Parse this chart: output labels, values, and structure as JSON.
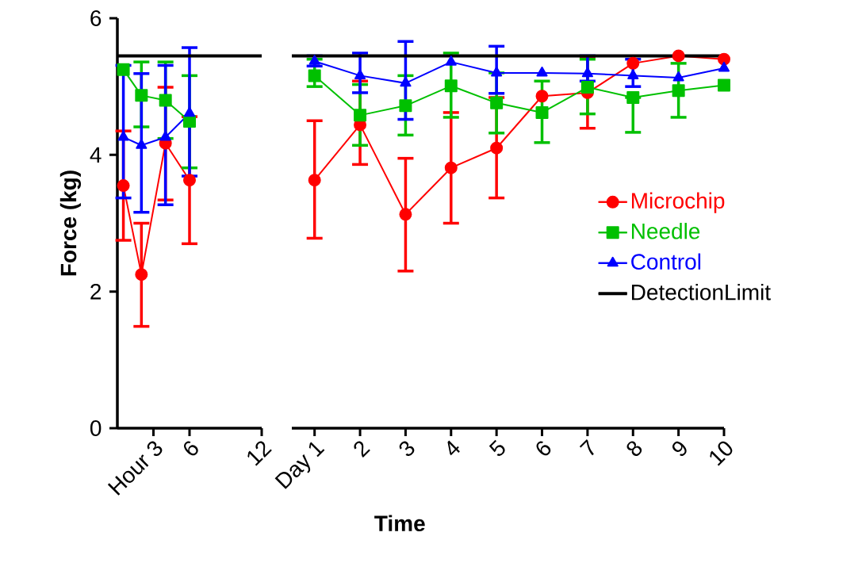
{
  "chart_data": [
    {
      "type": "line",
      "ylabel": "Force (kg)",
      "x": [
        0.5,
        2,
        4,
        6
      ],
      "xlim": [
        0,
        12
      ],
      "ylim": [
        0,
        6
      ],
      "yticks": [
        0,
        2,
        4,
        6
      ],
      "xticks": [
        {
          "value": 3,
          "label": "Hour 3"
        },
        6,
        12
      ],
      "tick_labels": "xy",
      "legend": false,
      "series": [
        {
          "color": "#ff0000",
          "marker": "circle",
          "values": [
            3.55,
            2.25,
            4.17,
            3.63
          ],
          "errors": [
            [
              2.75,
              4.35
            ],
            [
              1.49,
              3.0
            ],
            [
              3.34,
              4.99
            ],
            [
              2.7,
              4.56
            ]
          ]
        },
        {
          "color": "#00c000",
          "marker": "square",
          "values": [
            5.25,
            4.87,
            4.8,
            4.49
          ],
          "errors": [
            null,
            [
              4.41,
              5.36
            ],
            [
              4.24,
              5.36
            ],
            [
              3.81,
              5.16
            ]
          ]
        },
        {
          "color": "#0000ff",
          "marker": "triangle",
          "values": [
            4.26,
            4.14,
            4.26,
            4.61
          ],
          "errors": [
            [
              3.37,
              5.31
            ],
            [
              3.16,
              5.19
            ],
            [
              3.27,
              5.31
            ],
            [
              3.69,
              5.57
            ]
          ]
        }
      ],
      "ref_lines": [
        {
          "axis": "y",
          "value": 5.45,
          "color": "#000000"
        }
      ]
    },
    {
      "type": "line",
      "xlabel": "Time",
      "x": [
        1,
        2,
        3,
        4,
        5,
        6,
        7,
        8,
        9,
        10
      ],
      "xlim": [
        0.5,
        10
      ],
      "ylim": [
        0,
        6
      ],
      "xticks": [
        {
          "value": 1,
          "label": "Day 1"
        },
        2,
        3,
        4,
        5,
        6,
        7,
        8,
        9,
        10
      ],
      "tick_labels": "x",
      "legend": "right",
      "series": [
        {
          "name": "Microchip",
          "color": "#ff0000",
          "marker": "circle",
          "values": [
            3.63,
            4.44,
            3.13,
            3.81,
            4.1,
            4.86,
            4.91,
            5.34,
            5.45,
            5.4
          ],
          "errors": [
            [
              2.78,
              4.5
            ],
            [
              3.86,
              5.08
            ],
            [
              2.3,
              3.95
            ],
            [
              3.0,
              4.62
            ],
            [
              3.37,
              4.84
            ],
            null,
            [
              4.39,
              5.43
            ],
            null,
            null,
            null
          ]
        },
        {
          "name": "Needle",
          "color": "#00c000",
          "marker": "square",
          "values": [
            5.16,
            4.58,
            4.72,
            5.01,
            4.76,
            4.62,
            4.99,
            4.84,
            4.94,
            5.02
          ],
          "errors": [
            [
              5.0,
              5.4
            ],
            [
              4.14,
              5.03
            ],
            [
              4.29,
              5.16
            ],
            [
              4.55,
              5.49
            ],
            [
              4.32,
              5.2
            ],
            [
              4.18,
              5.08
            ],
            [
              4.6,
              5.4
            ],
            [
              4.33,
              4.84
            ],
            [
              4.55,
              5.34
            ],
            null
          ]
        },
        {
          "name": "Control",
          "color": "#0000ff",
          "marker": "triangle",
          "values": [
            5.37,
            5.16,
            5.05,
            5.36,
            5.2,
            5.2,
            5.19,
            5.16,
            5.13,
            5.27
          ],
          "errors": [
            [
              5.3,
              5.45
            ],
            [
              4.91,
              5.49
            ],
            [
              4.52,
              5.66
            ],
            null,
            [
              4.9,
              5.59
            ],
            null,
            [
              5.08,
              5.45
            ],
            [
              5.0,
              5.4
            ],
            null,
            null
          ]
        }
      ],
      "ref_lines": [
        {
          "axis": "y",
          "value": 5.45,
          "color": "#000000",
          "label": "DetectionLimit"
        }
      ]
    }
  ]
}
